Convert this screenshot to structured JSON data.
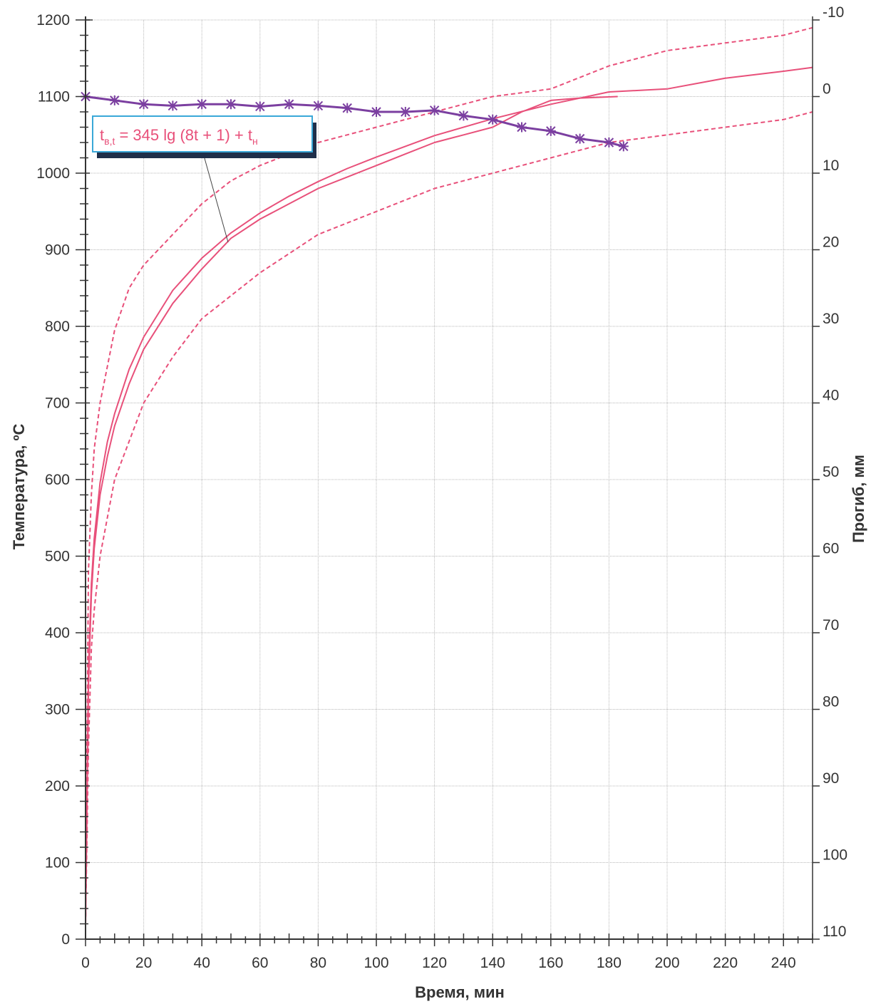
{
  "chart_data": {
    "type": "line",
    "xlabel": "Время, мин",
    "ylabel": "Температура, ºС",
    "y2label": "Прогиб,  мм",
    "xlim": [
      0,
      250
    ],
    "ylim": [
      0,
      1200
    ],
    "y2lim": [
      -10,
      110
    ],
    "x_ticks": [
      "0",
      "20",
      "40",
      "60",
      "80",
      "100",
      "120",
      "140",
      "160",
      "180",
      "200",
      "220",
      "240"
    ],
    "y_ticks": [
      "0",
      "100",
      "200",
      "300",
      "400",
      "500",
      "600",
      "700",
      "800",
      "900",
      "1000",
      "1100",
      "1200"
    ],
    "y2_ticks": [
      "-10",
      "0",
      "10",
      "20",
      "30",
      "40",
      "50",
      "60",
      "70",
      "80",
      "90",
      "100",
      "110"
    ],
    "grid": true,
    "annotation": {
      "text_main": "t",
      "text_sub1": "в,t",
      "text_mid": " = 345 lg (8t + 1) + t",
      "text_sub2": "н"
    },
    "colors": {
      "temperature": "#e8507a",
      "deflection": "#7b3fa0",
      "grid": "#b8b8b8",
      "axis": "#333333"
    },
    "series": [
      {
        "role": "standard-temperature",
        "axis": "left",
        "style": "solid",
        "x": [
          0,
          1,
          2,
          3,
          5,
          7.5,
          10,
          15,
          20,
          30,
          40,
          50,
          60,
          70,
          80,
          90,
          100,
          120,
          140,
          160,
          180,
          200,
          220,
          240,
          250
        ],
        "y": [
          20,
          350,
          464,
          523,
          596,
          649,
          686,
          744,
          786,
          847,
          889,
          922,
          948,
          970,
          989,
          1006,
          1021,
          1049,
          1071,
          1090,
          1106,
          1110,
          1124,
          1133,
          1138
        ]
      },
      {
        "role": "upper-tolerance",
        "axis": "left",
        "style": "dashed",
        "x": [
          0,
          1,
          2,
          3,
          5,
          10,
          15,
          20,
          30,
          40,
          50,
          60,
          80,
          100,
          120,
          140,
          160,
          180,
          200,
          220,
          240,
          250
        ],
        "y": [
          20,
          480,
          580,
          640,
          700,
          795,
          850,
          880,
          920,
          960,
          990,
          1010,
          1040,
          1060,
          1080,
          1100,
          1110,
          1140,
          1160,
          1170,
          1180,
          1190
        ]
      },
      {
        "role": "lower-tolerance",
        "axis": "left",
        "style": "dashed",
        "x": [
          0,
          1,
          2,
          3,
          5,
          10,
          15,
          20,
          30,
          40,
          50,
          60,
          80,
          100,
          120,
          140,
          160,
          180,
          200,
          220,
          240,
          250
        ],
        "y": [
          20,
          250,
          380,
          430,
          500,
          600,
          650,
          700,
          760,
          810,
          840,
          870,
          920,
          950,
          980,
          1000,
          1020,
          1040,
          1050,
          1060,
          1070,
          1080
        ]
      },
      {
        "role": "measured-temperature",
        "axis": "left",
        "style": "solid",
        "x": [
          0,
          1,
          2,
          3,
          5,
          7.5,
          10,
          15,
          20,
          30,
          40,
          50,
          60,
          70,
          80,
          90,
          100,
          110,
          120,
          130,
          140,
          150,
          160,
          170,
          183
        ],
        "y": [
          20,
          330,
          450,
          510,
          580,
          630,
          670,
          725,
          770,
          830,
          875,
          915,
          940,
          960,
          980,
          995,
          1010,
          1025,
          1040,
          1050,
          1060,
          1080,
          1095,
          1098,
          1100
        ]
      },
      {
        "role": "deflection",
        "axis": "right",
        "style": "solid-with-markers",
        "x": [
          0,
          10,
          20,
          30,
          40,
          50,
          60,
          70,
          80,
          90,
          100,
          110,
          120,
          130,
          140,
          150,
          160,
          170,
          180,
          185
        ],
        "y": [
          0,
          0.5,
          1,
          1.2,
          1,
          1,
          1.3,
          1,
          1.2,
          1.5,
          2,
          2,
          1.8,
          2.5,
          3,
          4,
          4.5,
          5.5,
          6,
          6.5
        ]
      }
    ]
  }
}
